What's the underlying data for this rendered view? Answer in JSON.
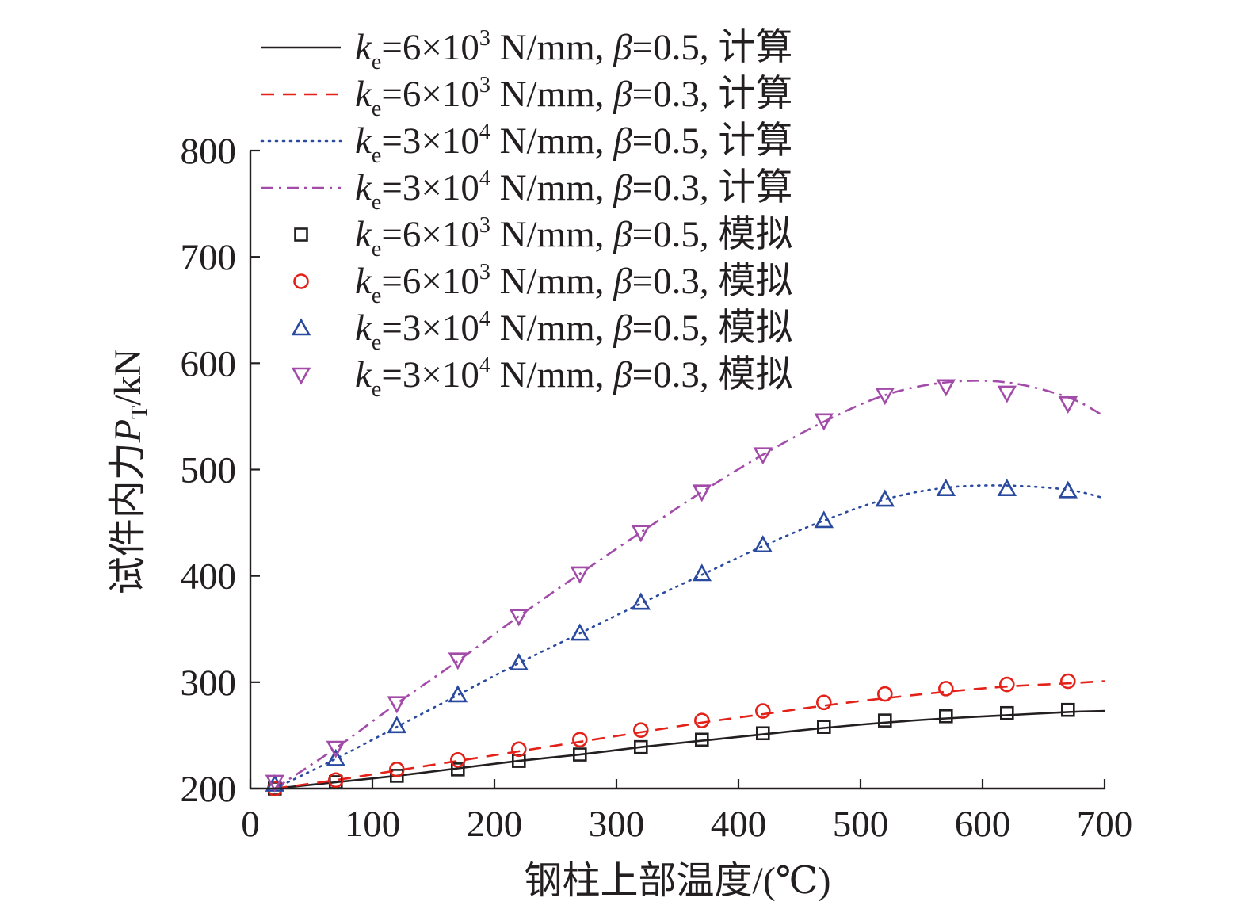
{
  "chart_data": {
    "type": "line",
    "xlabel": "钢柱上部温度/(℃)",
    "ylabel_main": "试件内力",
    "ylabel_symbol": "P",
    "ylabel_subscript": "T",
    "ylabel_unit": "/kN",
    "xlim": [
      0,
      700
    ],
    "ylim": [
      200,
      800
    ],
    "xticks": [
      "0",
      "100",
      "200",
      "300",
      "400",
      "500",
      "600",
      "700"
    ],
    "yticks": [
      "200",
      "300",
      "400",
      "500",
      "600",
      "700",
      "800"
    ],
    "grid": false,
    "legend_position": "top",
    "colors": {
      "black": "#231f20",
      "red": "#e32119",
      "blue": "#2a4a9f",
      "purple": "#a24ba9"
    },
    "series": [
      {
        "name": "ke=6×10³ N/mm, β=0.5, 计算",
        "legend": {
          "k": "k",
          "sub": "e",
          "mid": "=6×10",
          "sup": "3",
          "unit": " N/mm, ",
          "beta": "β",
          "tail": "=0.5, 计算"
        },
        "kind": "line",
        "color": "#231f20",
        "dash": "solid",
        "x": [
          20,
          70,
          120,
          170,
          220,
          270,
          320,
          370,
          420,
          470,
          520,
          570,
          620,
          670,
          700
        ],
        "y": [
          200,
          206,
          212,
          219,
          226,
          232,
          239,
          245,
          251,
          257,
          262,
          266,
          269,
          272,
          273
        ]
      },
      {
        "name": "ke=6×10³ N/mm, β=0.3, 计算",
        "legend": {
          "k": "k",
          "sub": "e",
          "mid": "=6×10",
          "sup": "3",
          "unit": " N/mm, ",
          "beta": "β",
          "tail": "=0.3, 计算"
        },
        "kind": "line",
        "color": "#e32119",
        "dash": "dashed",
        "x": [
          20,
          70,
          120,
          170,
          220,
          270,
          320,
          370,
          420,
          470,
          520,
          570,
          620,
          670,
          700
        ],
        "y": [
          200,
          208,
          217,
          226,
          235,
          244,
          253,
          262,
          270,
          278,
          285,
          291,
          296,
          299,
          301
        ]
      },
      {
        "name": "ke=3×10⁴ N/mm, β=0.5, 计算",
        "legend": {
          "k": "k",
          "sub": "e",
          "mid": "=3×10",
          "sup": "4",
          "unit": " N/mm, ",
          "beta": "β",
          "tail": "=0.5, 计算"
        },
        "kind": "line",
        "color": "#2a4a9f",
        "dash": "dotted",
        "x": [
          20,
          70,
          120,
          170,
          220,
          270,
          320,
          370,
          420,
          470,
          520,
          570,
          620,
          670,
          700
        ],
        "y": [
          200,
          228,
          258,
          288,
          318,
          346,
          374,
          401,
          428,
          452,
          472,
          483,
          485,
          481,
          473
        ]
      },
      {
        "name": "ke=3×10⁴ N/mm, β=0.3, 计算",
        "legend": {
          "k": "k",
          "sub": "e",
          "mid": "=3×10",
          "sup": "4",
          "unit": " N/mm, ",
          "beta": "β",
          "tail": "=0.3, 计算"
        },
        "kind": "line",
        "color": "#a24ba9",
        "dash": "dashdot",
        "x": [
          20,
          70,
          120,
          170,
          220,
          270,
          320,
          370,
          420,
          470,
          520,
          570,
          620,
          670,
          700
        ],
        "y": [
          200,
          238,
          280,
          320,
          362,
          402,
          441,
          479,
          514,
          545,
          570,
          582,
          582,
          568,
          550
        ]
      },
      {
        "name": "ke=6×10³ N/mm, β=0.5, 模拟",
        "legend": {
          "k": "k",
          "sub": "e",
          "mid": "=6×10",
          "sup": "3",
          "unit": " N/mm, ",
          "beta": "β",
          "tail": "=0.5, 模拟"
        },
        "kind": "marker",
        "color": "#231f20",
        "marker": "square",
        "x": [
          20,
          70,
          120,
          170,
          220,
          270,
          320,
          370,
          420,
          470,
          520,
          570,
          620,
          670
        ],
        "y": [
          200,
          206,
          212,
          218,
          226,
          232,
          239,
          246,
          252,
          258,
          264,
          268,
          271,
          274
        ]
      },
      {
        "name": "ke=6×10³ N/mm, β=0.3, 模拟",
        "legend": {
          "k": "k",
          "sub": "e",
          "mid": "=6×10",
          "sup": "3",
          "unit": " N/mm, ",
          "beta": "β",
          "tail": "=0.3, 模拟"
        },
        "kind": "marker",
        "color": "#e32119",
        "marker": "circle",
        "x": [
          20,
          70,
          120,
          170,
          220,
          270,
          320,
          370,
          420,
          470,
          520,
          570,
          620,
          670
        ],
        "y": [
          200,
          208,
          218,
          227,
          237,
          246,
          255,
          264,
          273,
          281,
          289,
          294,
          298,
          301
        ]
      },
      {
        "name": "ke=3×10⁴ N/mm, β=0.5, 模拟",
        "legend": {
          "k": "k",
          "sub": "e",
          "mid": "=3×10",
          "sup": "4",
          "unit": " N/mm, ",
          "beta": "β",
          "tail": "=0.5, 模拟"
        },
        "kind": "marker",
        "color": "#2a4a9f",
        "marker": "triangle-up",
        "x": [
          20,
          70,
          120,
          170,
          220,
          270,
          320,
          370,
          420,
          470,
          520,
          570,
          620,
          670
        ],
        "y": [
          204,
          228,
          259,
          288,
          318,
          346,
          375,
          402,
          429,
          452,
          472,
          482,
          482,
          480
        ]
      },
      {
        "name": "ke=3×10⁴ N/mm, β=0.3, 模拟",
        "legend": {
          "k": "k",
          "sub": "e",
          "mid": "=3×10",
          "sup": "4",
          "unit": " N/mm, ",
          "beta": "β",
          "tail": "=0.3, 模拟"
        },
        "kind": "marker",
        "color": "#a24ba9",
        "marker": "triangle-down",
        "x": [
          20,
          70,
          120,
          170,
          220,
          270,
          320,
          370,
          420,
          470,
          520,
          570,
          620,
          670
        ],
        "y": [
          206,
          238,
          280,
          321,
          362,
          402,
          441,
          479,
          514,
          546,
          570,
          578,
          572,
          562
        ]
      }
    ]
  }
}
